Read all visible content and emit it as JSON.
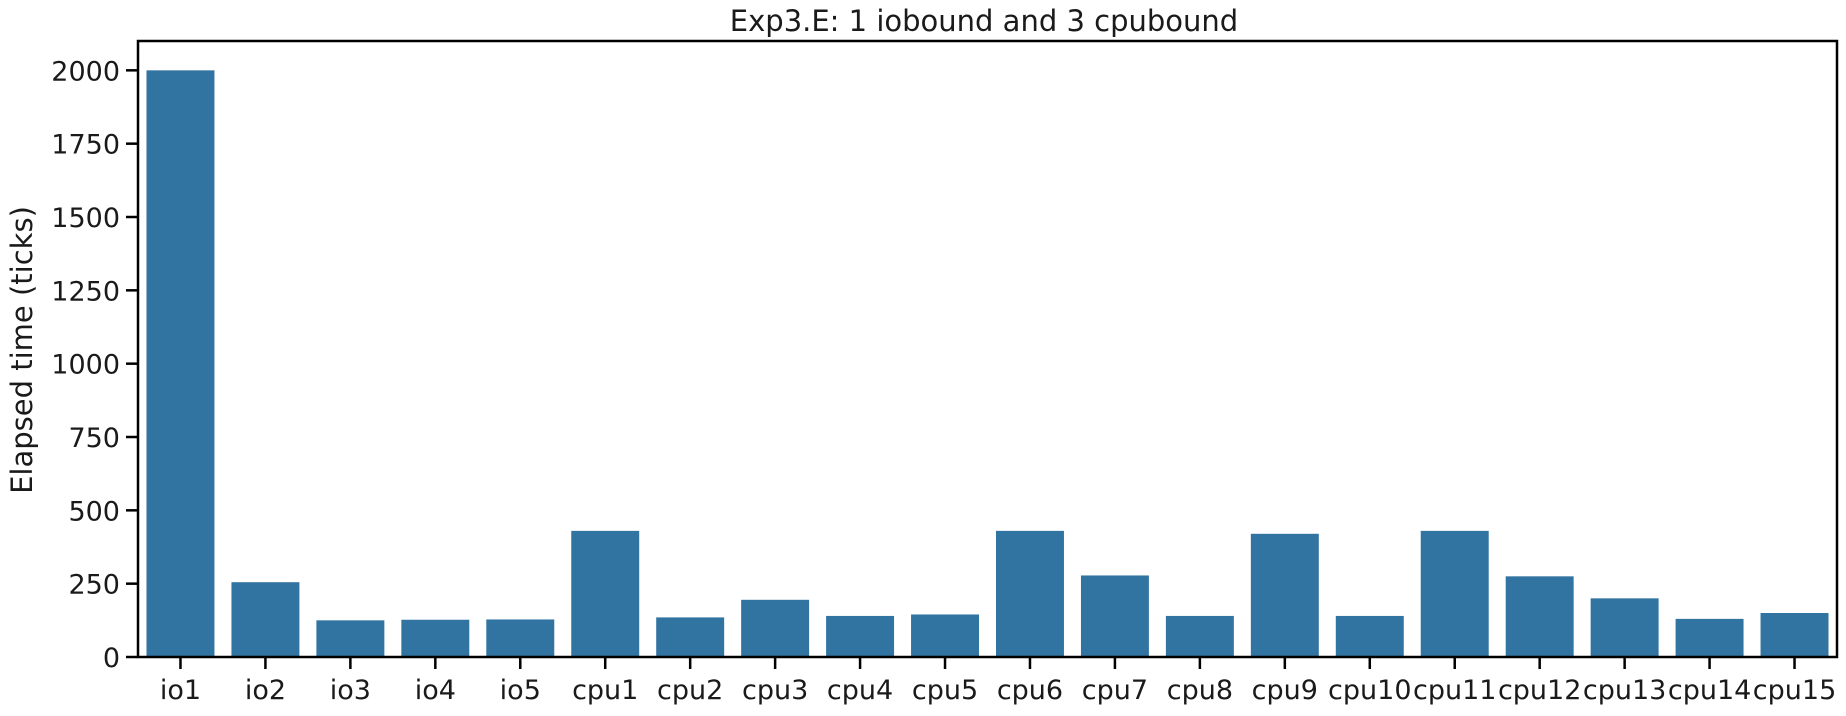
{
  "chart_data": {
    "type": "bar",
    "title": "Exp3.E: 1 iobound and 3 cpubound",
    "xlabel": "",
    "ylabel": "Elapsed time (ticks)",
    "ylim": [
      0,
      2100
    ],
    "yticks": [
      0,
      250,
      500,
      750,
      1000,
      1250,
      1500,
      1750,
      2000
    ],
    "categories": [
      "io1",
      "io2",
      "io3",
      "io4",
      "io5",
      "cpu1",
      "cpu2",
      "cpu3",
      "cpu4",
      "cpu5",
      "cpu6",
      "cpu7",
      "cpu8",
      "cpu9",
      "cpu10",
      "cpu11",
      "cpu12",
      "cpu13",
      "cpu14",
      "cpu15"
    ],
    "values": [
      2000,
      255,
      125,
      127,
      128,
      430,
      135,
      195,
      140,
      145,
      430,
      278,
      140,
      420,
      140,
      430,
      275,
      200,
      130,
      150
    ],
    "bar_color": "#3274a1",
    "grid": false
  }
}
